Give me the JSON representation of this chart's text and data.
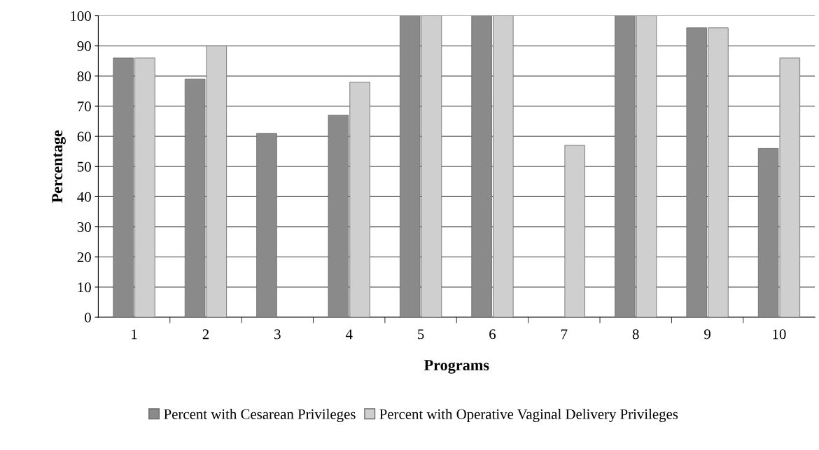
{
  "chart_data": {
    "type": "bar",
    "xlabel": "Programs",
    "ylabel": "Percentage",
    "categories": [
      "1",
      "2",
      "3",
      "4",
      "5",
      "6",
      "7",
      "8",
      "9",
      "10"
    ],
    "series": [
      {
        "name": "Percent with Cesarean Privileges",
        "color": "#8a8a8a",
        "values": [
          86,
          79,
          61,
          67,
          100,
          100,
          null,
          100,
          96,
          56
        ]
      },
      {
        "name": "Percent with Operative Vaginal Delivery Privileges",
        "color": "#cfcfcf",
        "values": [
          86,
          90,
          null,
          78,
          100,
          100,
          57,
          100,
          96,
          86
        ]
      }
    ],
    "ylim": [
      0,
      100
    ],
    "yticks": [
      0,
      10,
      20,
      30,
      40,
      50,
      60,
      70,
      80,
      90,
      100
    ],
    "grid": "y",
    "legend": "bottom"
  }
}
